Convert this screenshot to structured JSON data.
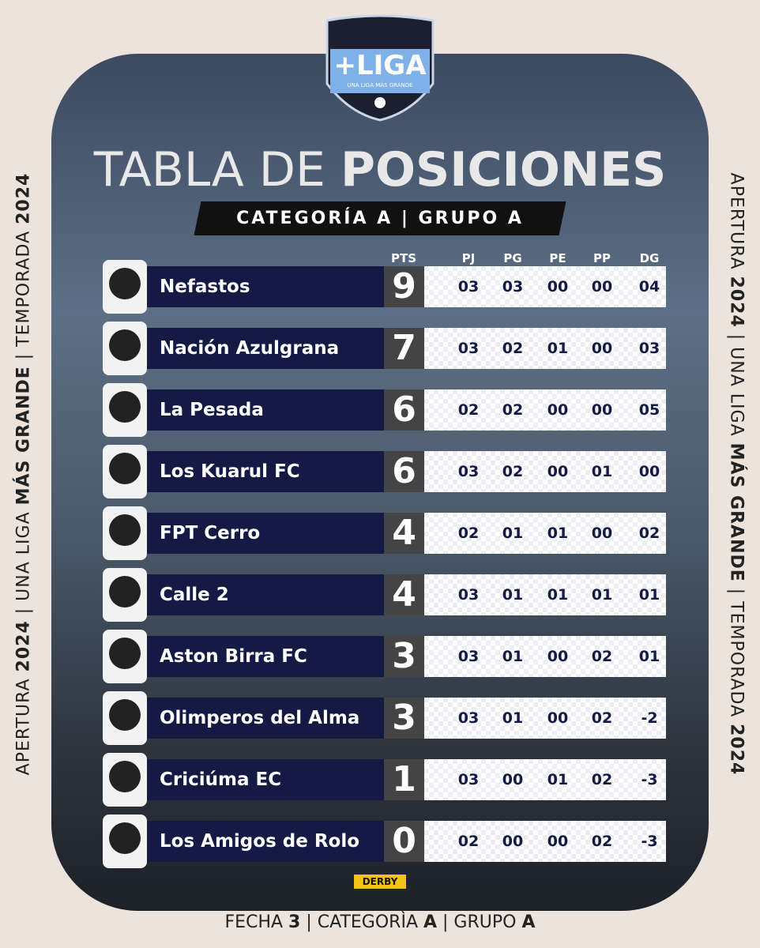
{
  "logo": {
    "name": "+LIGA",
    "tagline": "UNA LIGA MÁS GRANDE"
  },
  "title": {
    "light": "TABLA DE",
    "bold": "POSICIONES"
  },
  "subtitle": "CATEGORÍA A | GRUPO A",
  "side_text": [
    {
      "text": "APERTURA ",
      "bold": false
    },
    {
      "text": "2024",
      "bold": true
    },
    {
      "text": " | UNA LIGA ",
      "bold": false
    },
    {
      "text": "MÁS GRANDE",
      "bold": true
    },
    {
      "text": " | TEMPORADA ",
      "bold": false
    },
    {
      "text": "2024",
      "bold": true
    }
  ],
  "table": {
    "headers": [
      "PTS",
      "PJ",
      "PG",
      "PE",
      "PP",
      "DG"
    ],
    "rows": [
      [
        "Nefastos",
        "9",
        "03",
        "03",
        "00",
        "00",
        "04"
      ],
      [
        "Nación Azulgrana",
        "7",
        "03",
        "02",
        "01",
        "00",
        "03"
      ],
      [
        "La Pesada",
        "6",
        "02",
        "02",
        "00",
        "00",
        "05"
      ],
      [
        "Los Kuarul FC",
        "6",
        "03",
        "02",
        "00",
        "01",
        "00"
      ],
      [
        "FPT Cerro",
        "4",
        "02",
        "01",
        "01",
        "00",
        "02"
      ],
      [
        "Calle 2",
        "4",
        "03",
        "01",
        "01",
        "01",
        "01"
      ],
      [
        "Aston Birra FC",
        "3",
        "03",
        "01",
        "00",
        "02",
        "01"
      ],
      [
        "Olimperos del Alma",
        "3",
        "03",
        "01",
        "00",
        "02",
        "-2"
      ],
      [
        "Criciúma EC",
        "1",
        "03",
        "00",
        "01",
        "02",
        "-3"
      ],
      [
        "Los Amigos de Rolo",
        "0",
        "02",
        "00",
        "00",
        "02",
        "-3"
      ]
    ]
  },
  "sponsor": "DERBY",
  "footer": [
    {
      "text": "FECHA ",
      "bold": false
    },
    {
      "text": "3",
      "bold": true
    },
    {
      "text": " | CATEGORÌA ",
      "bold": false
    },
    {
      "text": "A",
      "bold": true
    },
    {
      "text": " | GRUPO ",
      "bold": false
    },
    {
      "text": "A",
      "bold": true
    }
  ]
}
